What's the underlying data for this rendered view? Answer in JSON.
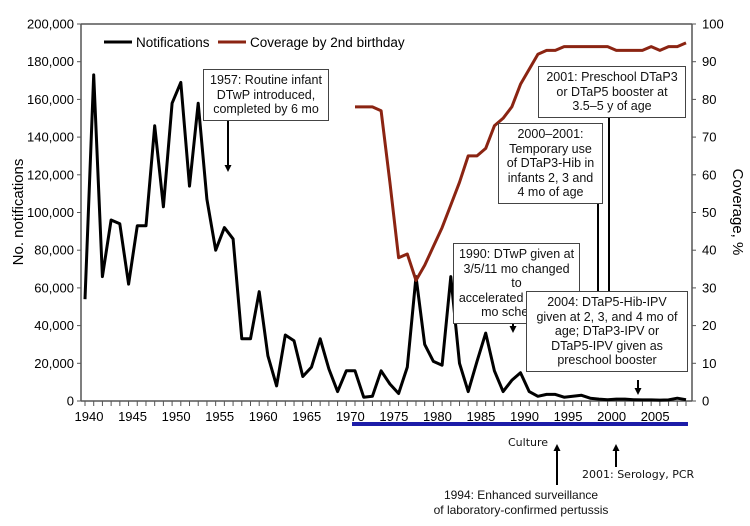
{
  "chart_data": {
    "type": "line",
    "title": "",
    "xlabel": "",
    "ylabel": "No. notifications",
    "y2label": "Coverage, %",
    "xlim": [
      1940,
      2009
    ],
    "ylim": [
      0,
      200000
    ],
    "y2lim": [
      0,
      100
    ],
    "x_ticks": [
      1940,
      1945,
      1950,
      1955,
      1960,
      1965,
      1970,
      1975,
      1980,
      1985,
      1990,
      1995,
      2000,
      2005
    ],
    "y_ticks": [
      "0",
      "20,000",
      "40,000",
      "60,000",
      "80,000",
      "100,000",
      "120,000",
      "140,000",
      "160,000",
      "180,000",
      "200,000"
    ],
    "y2_ticks": [
      "0",
      "10",
      "20",
      "30",
      "40",
      "50",
      "60",
      "70",
      "80",
      "90",
      "100"
    ],
    "legend": {
      "placement": "top-left",
      "entries": [
        "Notifications",
        "Coverage by 2nd birthday"
      ]
    },
    "grid": false,
    "series": [
      {
        "name": "Notifications",
        "axis": "left",
        "color": "#000000",
        "x": [
          1940,
          1941,
          1942,
          1943,
          1944,
          1945,
          1946,
          1947,
          1948,
          1949,
          1950,
          1951,
          1952,
          1953,
          1954,
          1955,
          1956,
          1957,
          1958,
          1959,
          1960,
          1961,
          1962,
          1963,
          1964,
          1965,
          1966,
          1967,
          1968,
          1969,
          1970,
          1971,
          1972,
          1973,
          1974,
          1975,
          1976,
          1977,
          1978,
          1979,
          1980,
          1981,
          1982,
          1983,
          1984,
          1985,
          1986,
          1987,
          1988,
          1989,
          1990,
          1991,
          1992,
          1993,
          1994,
          1995,
          1996,
          1997,
          1998,
          1999,
          2000,
          2001,
          2002,
          2003,
          2004,
          2005,
          2006,
          2007,
          2008,
          2009
        ],
        "values": [
          54000,
          173000,
          66000,
          96000,
          94000,
          62000,
          93000,
          93000,
          146000,
          103000,
          158000,
          169000,
          114000,
          158000,
          107000,
          80000,
          92000,
          86000,
          33000,
          33000,
          58000,
          24000,
          8000,
          35000,
          32000,
          13000,
          18000,
          33000,
          17000,
          5000,
          16000,
          16000,
          2000,
          2500,
          16000,
          9000,
          4000,
          18000,
          66000,
          30000,
          21000,
          19000,
          66000,
          20000,
          5000,
          21000,
          36000,
          16000,
          5000,
          11000,
          15000,
          5000,
          2500,
          3500,
          3500,
          2000,
          2500,
          3000,
          1500,
          1000,
          700,
          1000,
          1000,
          700,
          600,
          600,
          500,
          600,
          1500,
          700
        ]
      },
      {
        "name": "Coverage by 2nd birthday",
        "axis": "right",
        "color": "#8b2412",
        "x": [
          1971,
          1972,
          1973,
          1974,
          1975,
          1976,
          1977,
          1978,
          1979,
          1980,
          1981,
          1982,
          1983,
          1984,
          1985,
          1986,
          1987,
          1988,
          1989,
          1990,
          1991,
          1992,
          1993,
          1994,
          1995,
          1996,
          1997,
          1998,
          1999,
          2000,
          2001,
          2002,
          2003,
          2004,
          2005,
          2006,
          2007,
          2008,
          2009
        ],
        "values": [
          78,
          78,
          78,
          77,
          58,
          38,
          39,
          32,
          36,
          41,
          46,
          52,
          58,
          65,
          65,
          67,
          73,
          75,
          78,
          84,
          88,
          92,
          93,
          93,
          94,
          94,
          94,
          94,
          94,
          94,
          93,
          93,
          93,
          93,
          94,
          93,
          94,
          94,
          95
        ]
      }
    ],
    "annotations": [
      {
        "id": "a1957",
        "lines": [
          "1957: Routine infant",
          "DTwP introduced,",
          "completed by 6 mo"
        ],
        "arrow_year": 1957
      },
      {
        "id": "a2001b",
        "lines": [
          "2001: Preschool DTaP3",
          "or DTaP5 booster at",
          "3.5–5 y of age"
        ],
        "arrow_year": 2001
      },
      {
        "id": "a2000",
        "lines": [
          "2000–2001:",
          "Temporary use",
          "of DTaP3-Hib in",
          "infants 2, 3 and",
          "4 mo of age"
        ],
        "arrow_year": 2000
      },
      {
        "id": "a1990",
        "lines": [
          "1990: DTwP given at",
          "3/5/11 mo changed to",
          "accelerated 2-, 3-, 4-",
          "mo schedule"
        ],
        "arrow_year": 1990
      },
      {
        "id": "a2004",
        "lines": [
          "2004: DTaP5-Hib-IPV",
          "given at 2, 3, and 4 mo of",
          "age; DTaP3-IPV or",
          "DTaP5-IPV given as",
          "preschool booster"
        ],
        "arrow_year": 2004
      }
    ],
    "surveillance": {
      "bar_label": "Culture",
      "bar_years": [
        1971,
        2009
      ],
      "bar_color": "#1c1ca8",
      "notes": [
        {
          "text": "2001: Serology, PCR",
          "year": 2001
        },
        {
          "lines": [
            "1994: Enhanced surveillance",
            "of laboratory-confirmed pertussis"
          ],
          "year": 1994
        }
      ]
    }
  }
}
